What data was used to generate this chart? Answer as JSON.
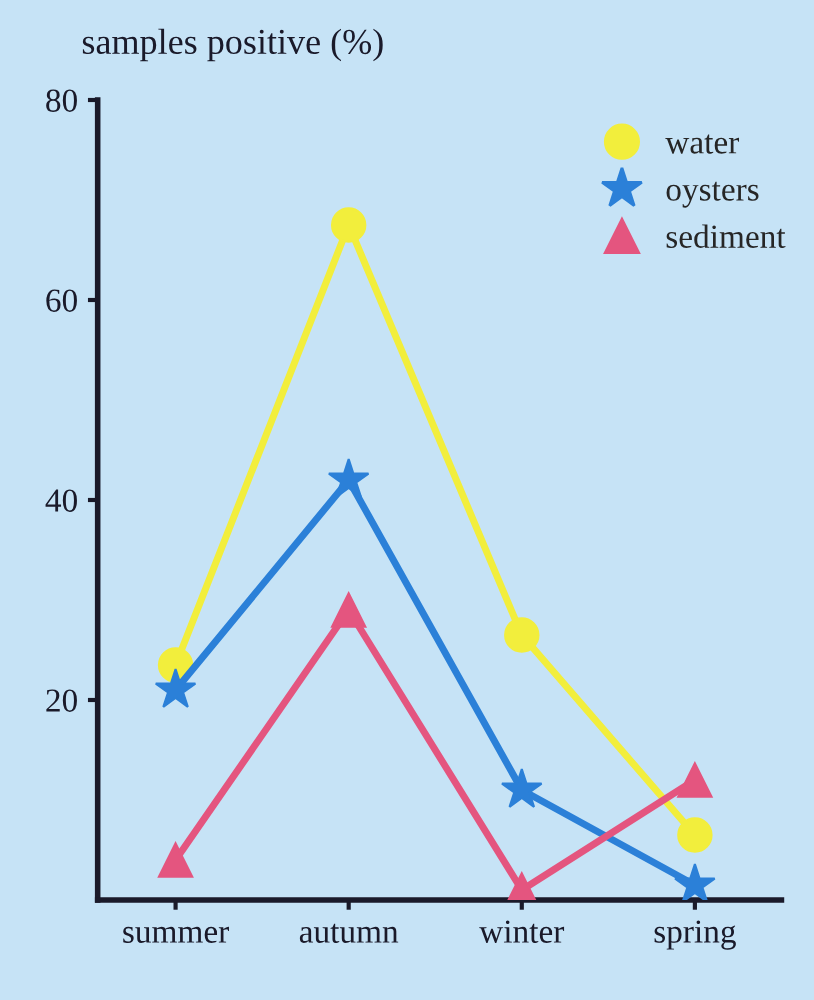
{
  "chart_data": {
    "type": "line",
    "ylabel": "samples positive (%)",
    "categories": [
      "summer",
      "autumn",
      "winter",
      "spring"
    ],
    "series": [
      {
        "name": "water",
        "color": "#f2ee3c",
        "marker": "circle",
        "values": [
          23.5,
          67.5,
          26.5,
          6.5
        ]
      },
      {
        "name": "oysters",
        "color": "#2b80d8",
        "marker": "star",
        "values": [
          21,
          42,
          11,
          1.5
        ]
      },
      {
        "name": "sediment",
        "color": "#e4557f",
        "marker": "triangle",
        "values": [
          4,
          29,
          1,
          12
        ]
      }
    ],
    "ylim": [
      0,
      80
    ],
    "yticks": [
      20,
      40,
      60,
      80
    ],
    "grid": false,
    "legend": "top right"
  }
}
